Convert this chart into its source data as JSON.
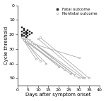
{
  "title": "",
  "xlabel": "Days after symptom onset",
  "ylabel": "Cycle threshold",
  "xlim": [
    0,
    40
  ],
  "ylim": [
    55,
    0
  ],
  "xticks": [
    0,
    5,
    10,
    15,
    20,
    25,
    30,
    35,
    40
  ],
  "yticks": [
    0,
    10,
    20,
    30,
    40,
    50
  ],
  "fatal_points": [
    [
      2,
      15
    ],
    [
      2,
      18
    ],
    [
      2,
      20
    ],
    [
      2,
      21
    ],
    [
      3,
      17
    ],
    [
      3,
      19
    ],
    [
      3,
      21
    ],
    [
      4,
      18
    ],
    [
      4,
      19
    ],
    [
      4,
      20
    ],
    [
      5,
      17
    ],
    [
      5,
      19
    ],
    [
      6,
      18
    ],
    [
      6,
      20
    ],
    [
      7,
      19
    ],
    [
      3,
      16
    ],
    [
      4,
      22
    ],
    [
      5,
      21
    ]
  ],
  "nonfatal_lines": [
    [
      [
        2,
        22
      ],
      [
        9,
        37
      ]
    ],
    [
      [
        3,
        23
      ],
      [
        11,
        38
      ]
    ],
    [
      [
        3,
        24
      ],
      [
        14,
        40
      ]
    ],
    [
      [
        4,
        22
      ],
      [
        17,
        36
      ]
    ],
    [
      [
        4,
        24
      ],
      [
        20,
        42
      ]
    ],
    [
      [
        5,
        25
      ],
      [
        23,
        44
      ]
    ],
    [
      [
        5,
        26
      ],
      [
        26,
        47
      ]
    ],
    [
      [
        6,
        24
      ],
      [
        28,
        48
      ]
    ],
    [
      [
        7,
        25
      ],
      [
        30,
        50
      ]
    ],
    [
      [
        8,
        26
      ],
      [
        32,
        50
      ]
    ],
    [
      [
        9,
        27
      ],
      [
        30,
        36
      ]
    ],
    [
      [
        10,
        23
      ],
      [
        33,
        50
      ]
    ],
    [
      [
        11,
        22
      ],
      [
        35,
        50
      ]
    ]
  ],
  "fatal_color": "#222222",
  "nonfatal_color": "#aaaaaa",
  "background_color": "#ffffff",
  "legend_fatal": "Fatal outcome",
  "legend_nonfatal": "Nonfatal outcome",
  "tick_fontsize": 4.5,
  "label_fontsize": 5,
  "legend_fontsize": 4
}
